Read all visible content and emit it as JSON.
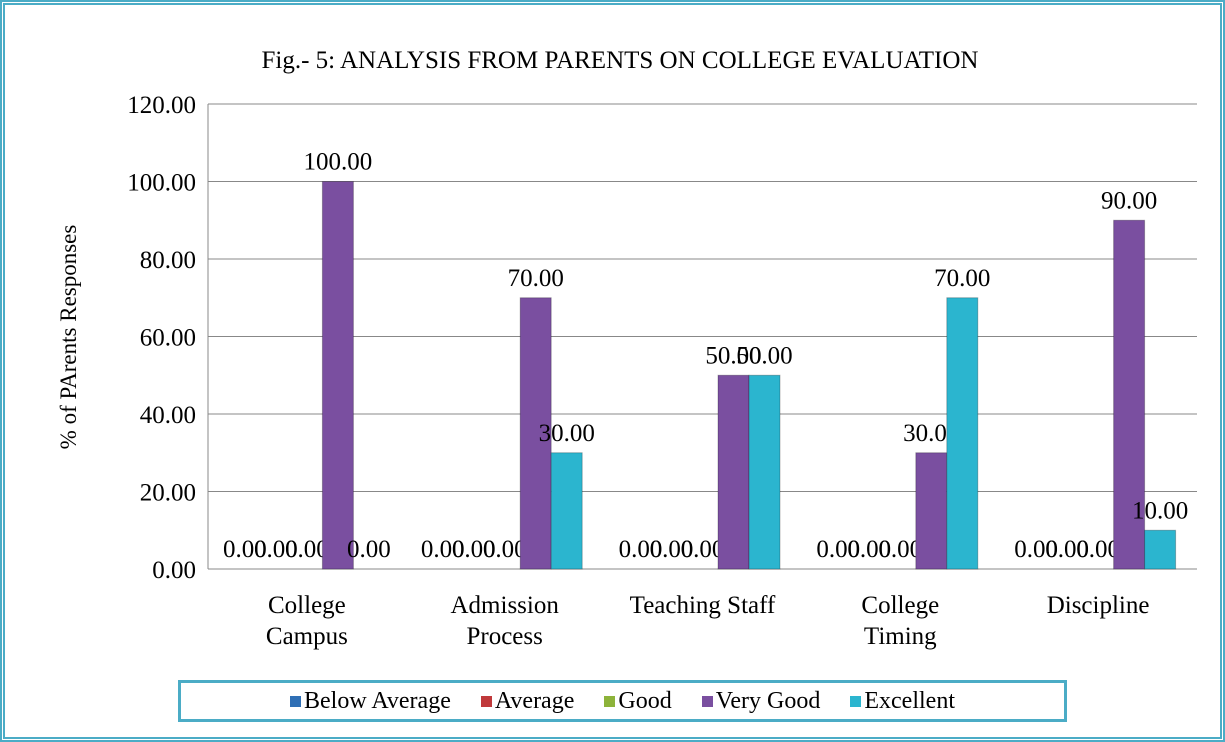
{
  "chart_data": {
    "type": "bar",
    "title": "Fig.- 5: ANALYSIS FROM PARENTS ON  COLLEGE EVALUATION",
    "y_label": "% of PArents Responses",
    "categories": [
      "College\nCampus",
      "Admission\nProcess",
      "Teaching Staff",
      "College\nTiming",
      "Discipline"
    ],
    "series": [
      {
        "name": "Below Average",
        "color": "#2f6fb5",
        "values": [
          0,
          0,
          0,
          0,
          0
        ],
        "value_labels": [
          "0.00",
          "0.00",
          "0.00",
          "0.00",
          "0.00"
        ]
      },
      {
        "name": "Average",
        "color": "#c0393b",
        "values": [
          0,
          0,
          0,
          0,
          0
        ],
        "value_labels": [
          "0.00",
          "0.00",
          "0.00",
          "0.00",
          "0.00"
        ]
      },
      {
        "name": "Good",
        "color": "#8db33a",
        "values": [
          0,
          0,
          0,
          0,
          0
        ],
        "value_labels": [
          "0.00",
          "0.00",
          "0.00",
          "0.00",
          "0.00"
        ]
      },
      {
        "name": "Very Good",
        "color": "#7a4fa0",
        "values": [
          100,
          70,
          50,
          30,
          90
        ],
        "value_labels": [
          "100.00",
          "70.00",
          "50.00",
          "30.00",
          "90.00"
        ]
      },
      {
        "name": "Excellent",
        "color": "#2bb5cf",
        "values": [
          0,
          30,
          50,
          70,
          10
        ],
        "value_labels": [
          "0.00",
          "30.00",
          "50.00",
          "70.00",
          "10.00"
        ]
      }
    ],
    "ylim": [
      0,
      120
    ],
    "yticks": [
      {
        "value": 0,
        "label": "0.00"
      },
      {
        "value": 20,
        "label": "20.00"
      },
      {
        "value": 40,
        "label": "40.00"
      },
      {
        "value": 60,
        "label": "60.00"
      },
      {
        "value": 80,
        "label": "80.00"
      },
      {
        "value": 100,
        "label": "100.00"
      },
      {
        "value": 120,
        "label": "120.00"
      }
    ],
    "grid": true,
    "legend": "bottom"
  }
}
